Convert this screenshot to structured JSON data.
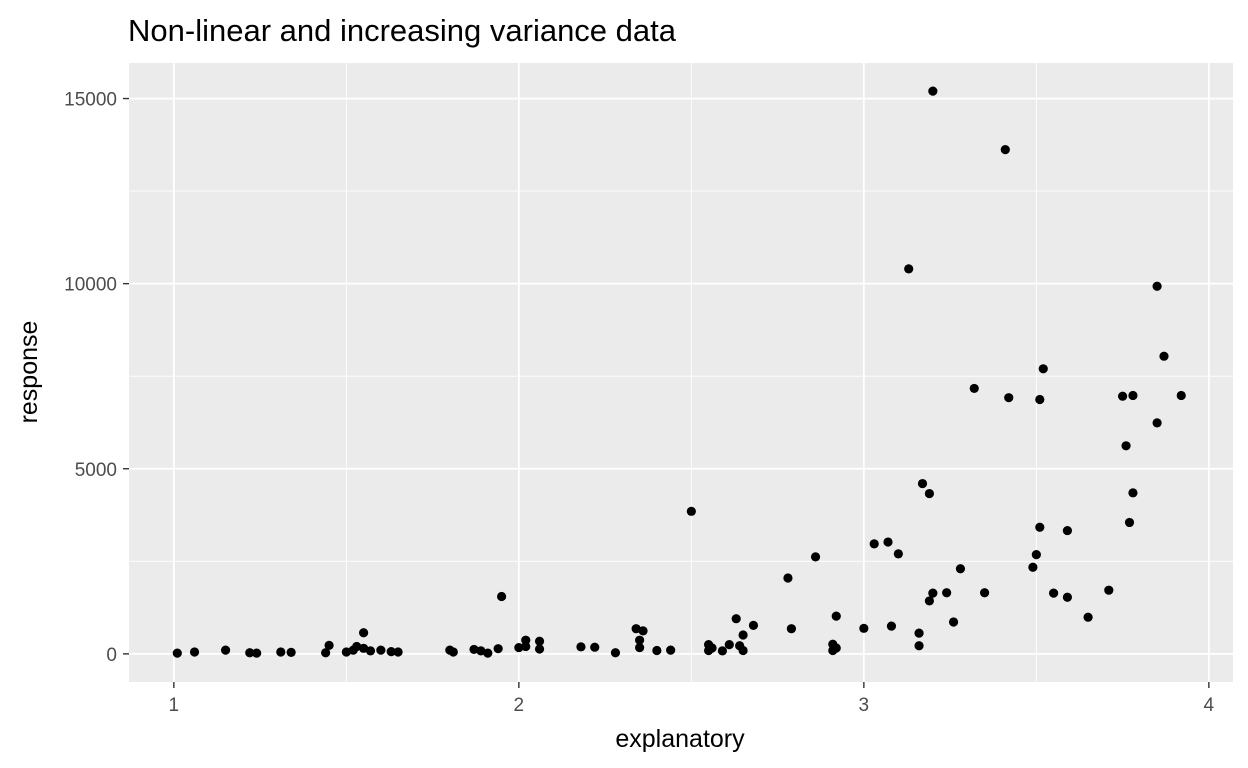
{
  "chart_data": {
    "type": "scatter",
    "title": "Non-linear and increasing variance data",
    "xlabel": "explanatory",
    "ylabel": "response",
    "xlim": [
      0.87,
      4.07
    ],
    "ylim": [
      -760,
      15960
    ],
    "xticks": [
      1,
      2,
      3,
      4
    ],
    "xtick_labels": [
      "1",
      "2",
      "3",
      "4"
    ],
    "xminor": [
      1.5,
      2.5,
      3.5
    ],
    "yticks": [
      0,
      5000,
      10000,
      15000
    ],
    "ytick_labels": [
      "0",
      "5000",
      "10000",
      "15000"
    ],
    "yminor": [
      2500,
      7500,
      12500
    ],
    "grid": true,
    "legend": "none",
    "colors": {
      "panel": "#ebebeb",
      "grid": "#ffffff",
      "point": "#000000",
      "tick_text": "#4d4d4d"
    },
    "points": [
      [
        1.01,
        20
      ],
      [
        1.06,
        50
      ],
      [
        1.15,
        100
      ],
      [
        1.22,
        30
      ],
      [
        1.24,
        20
      ],
      [
        1.31,
        50
      ],
      [
        1.34,
        40
      ],
      [
        1.44,
        30
      ],
      [
        1.45,
        230
      ],
      [
        1.5,
        50
      ],
      [
        1.52,
        100
      ],
      [
        1.53,
        200
      ],
      [
        1.55,
        570
      ],
      [
        1.55,
        150
      ],
      [
        1.57,
        80
      ],
      [
        1.6,
        100
      ],
      [
        1.63,
        60
      ],
      [
        1.65,
        50
      ],
      [
        1.8,
        100
      ],
      [
        1.81,
        50
      ],
      [
        1.87,
        120
      ],
      [
        1.89,
        80
      ],
      [
        1.91,
        20
      ],
      [
        1.94,
        140
      ],
      [
        1.95,
        1550
      ],
      [
        2.0,
        170
      ],
      [
        2.02,
        200
      ],
      [
        2.02,
        370
      ],
      [
        2.06,
        130
      ],
      [
        2.06,
        340
      ],
      [
        2.18,
        190
      ],
      [
        2.22,
        180
      ],
      [
        2.28,
        30
      ],
      [
        2.34,
        680
      ],
      [
        2.35,
        170
      ],
      [
        2.35,
        370
      ],
      [
        2.36,
        620
      ],
      [
        2.4,
        90
      ],
      [
        2.44,
        100
      ],
      [
        2.5,
        3850
      ],
      [
        2.55,
        90
      ],
      [
        2.55,
        250
      ],
      [
        2.56,
        160
      ],
      [
        2.59,
        80
      ],
      [
        2.61,
        250
      ],
      [
        2.63,
        950
      ],
      [
        2.64,
        220
      ],
      [
        2.65,
        90
      ],
      [
        2.65,
        510
      ],
      [
        2.68,
        770
      ],
      [
        2.78,
        2050
      ],
      [
        2.79,
        680
      ],
      [
        2.86,
        2620
      ],
      [
        2.91,
        260
      ],
      [
        2.91,
        90
      ],
      [
        2.92,
        160
      ],
      [
        2.92,
        1020
      ],
      [
        3.0,
        690
      ],
      [
        3.03,
        2970
      ],
      [
        3.07,
        3020
      ],
      [
        3.08,
        750
      ],
      [
        3.1,
        2700
      ],
      [
        3.13,
        10400
      ],
      [
        3.16,
        560
      ],
      [
        3.16,
        220
      ],
      [
        3.17,
        4600
      ],
      [
        3.19,
        1430
      ],
      [
        3.19,
        4330
      ],
      [
        3.2,
        15200
      ],
      [
        3.2,
        1640
      ],
      [
        3.24,
        1650
      ],
      [
        3.26,
        860
      ],
      [
        3.28,
        2300
      ],
      [
        3.32,
        7170
      ],
      [
        3.35,
        1650
      ],
      [
        3.41,
        13620
      ],
      [
        3.42,
        6920
      ],
      [
        3.49,
        2340
      ],
      [
        3.5,
        2680
      ],
      [
        3.51,
        3420
      ],
      [
        3.51,
        6870
      ],
      [
        3.52,
        7700
      ],
      [
        3.55,
        1640
      ],
      [
        3.59,
        3330
      ],
      [
        3.59,
        1530
      ],
      [
        3.65,
        990
      ],
      [
        3.71,
        1720
      ],
      [
        3.75,
        6960
      ],
      [
        3.76,
        5620
      ],
      [
        3.77,
        3550
      ],
      [
        3.78,
        4350
      ],
      [
        3.78,
        6980
      ],
      [
        3.85,
        6240
      ],
      [
        3.85,
        9930
      ],
      [
        3.87,
        8040
      ],
      [
        3.92,
        6980
      ]
    ]
  }
}
